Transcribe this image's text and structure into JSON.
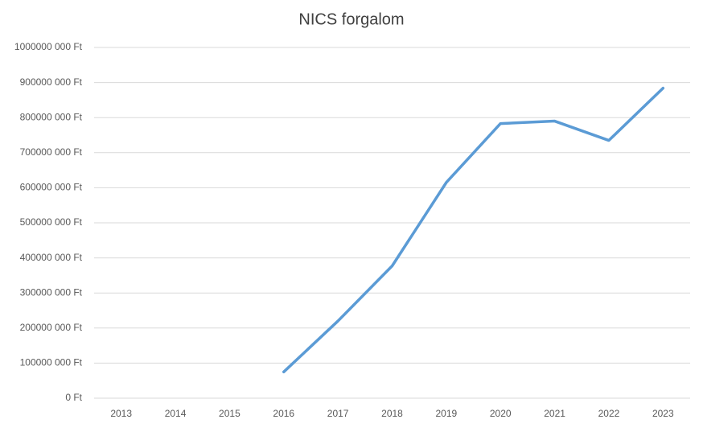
{
  "chart_data": {
    "type": "line",
    "title": "NICS forgalom",
    "categories": [
      "2013",
      "2014",
      "2015",
      "2016",
      "2017",
      "2018",
      "2019",
      "2020",
      "2021",
      "2022",
      "2023"
    ],
    "series": [
      {
        "name": "NICS forgalom",
        "color": "#5b9bd5",
        "values": [
          null,
          null,
          null,
          75000000,
          220000000,
          377000000,
          615000000,
          783000000,
          790000000,
          735000000,
          884000000
        ]
      }
    ],
    "ylim": [
      0,
      1000000000
    ],
    "yticks": [
      {
        "value": 0,
        "label": "0 Ft"
      },
      {
        "value": 100000000,
        "label": "100000 000 Ft"
      },
      {
        "value": 200000000,
        "label": "200000 000 Ft"
      },
      {
        "value": 300000000,
        "label": "300000 000 Ft"
      },
      {
        "value": 400000000,
        "label": "400000 000 Ft"
      },
      {
        "value": 500000000,
        "label": "500000 000 Ft"
      },
      {
        "value": 600000000,
        "label": "600000 000 Ft"
      },
      {
        "value": 700000000,
        "label": "700000 000 Ft"
      },
      {
        "value": 800000000,
        "label": "800000 000 Ft"
      },
      {
        "value": 900000000,
        "label": "900000 000 Ft"
      },
      {
        "value": 1000000000,
        "label": "1000000 000 Ft"
      }
    ],
    "grid": true
  }
}
